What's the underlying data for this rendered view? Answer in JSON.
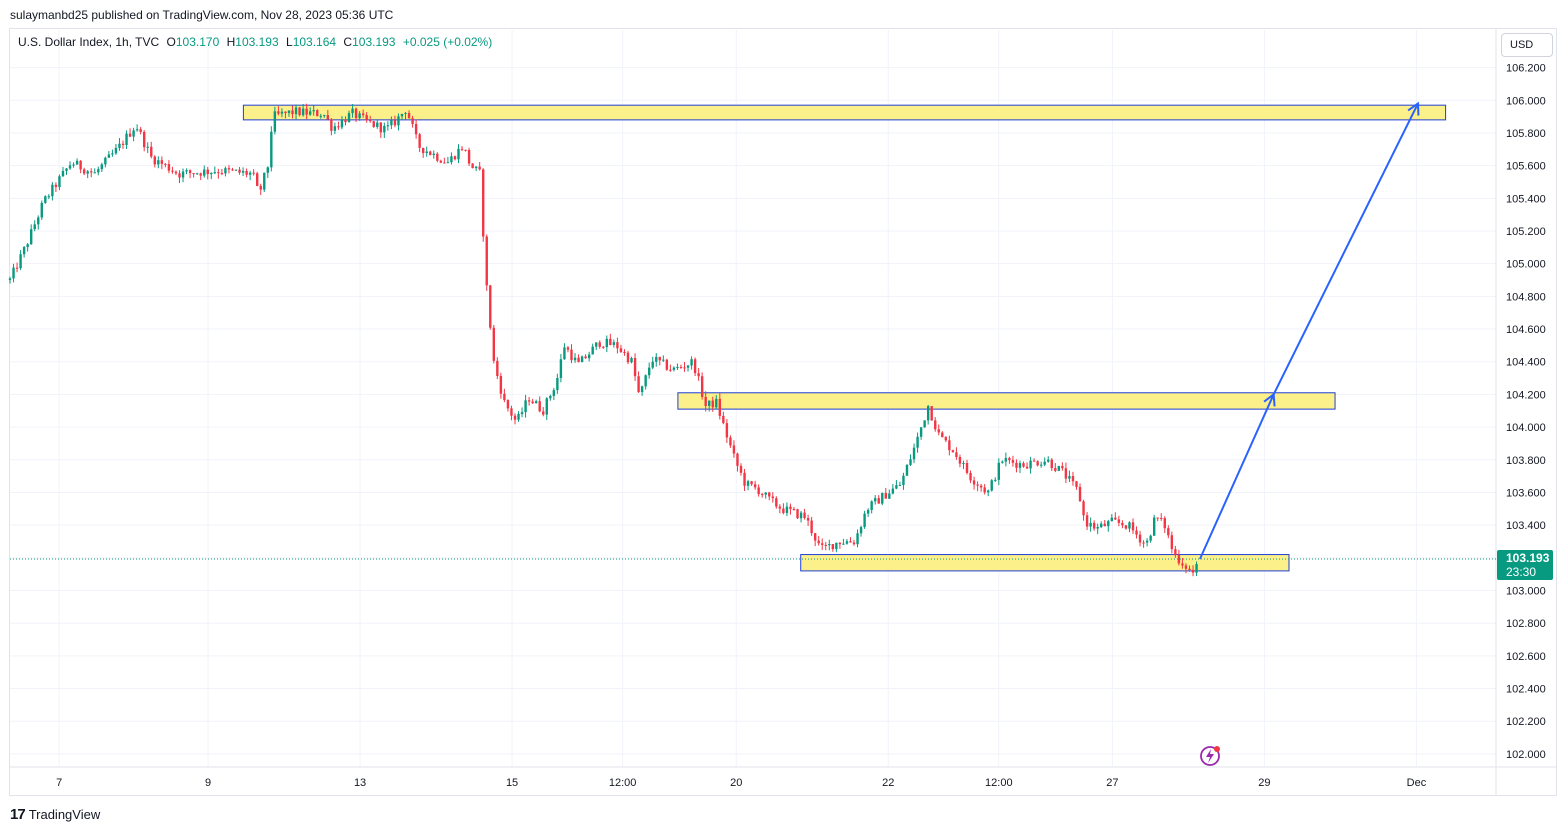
{
  "header": {
    "published_text": "sulaymanbd25 published on TradingView.com, Nov 28, 2023 05:36 UTC"
  },
  "legend": {
    "symbol": "U.S. Dollar Index, 1h, TVC",
    "open_label": "O",
    "open": "103.170",
    "high_label": "H",
    "high": "103.193",
    "low_label": "L",
    "low": "103.164",
    "close_label": "C",
    "close": "103.193",
    "change": "+0.025 (+0.02%)"
  },
  "currency": "USD",
  "price_tag": {
    "price": "103.193",
    "countdown": "23:30"
  },
  "footer": {
    "brand": "TradingView",
    "logo_text": "17"
  },
  "icons": [
    "tradingview-logo-icon",
    "flash-icon"
  ],
  "colors": {
    "up": "#089981",
    "down": "#f23645",
    "zone_fill": "#fbf08a",
    "zone_border": "#1e3fd6",
    "arrow": "#2962ff",
    "price_line": "#089981"
  },
  "chart_data": {
    "type": "candlestick",
    "ylim": [
      101.92,
      106.43
    ],
    "yticks": [
      102.0,
      102.2,
      102.4,
      102.6,
      102.8,
      103.0,
      103.2,
      103.4,
      103.6,
      103.8,
      104.0,
      104.2,
      104.4,
      104.6,
      104.8,
      105.0,
      105.2,
      105.4,
      105.6,
      105.8,
      106.0,
      106.2
    ],
    "ytick_labels": [
      "102.000",
      "102.200",
      "102.400",
      "102.600",
      "102.800",
      "103.000",
      "103.200",
      "103.400",
      "103.600",
      "103.800",
      "104.000",
      "104.200",
      "104.400",
      "104.600",
      "104.800",
      "105.000",
      "105.200",
      "105.400",
      "105.600",
      "105.800",
      "106.000",
      "106.200"
    ],
    "xticks": [
      {
        "label": "7",
        "t": 32
      },
      {
        "label": "9",
        "t": 129
      },
      {
        "label": "13",
        "t": 228
      },
      {
        "label": "15",
        "t": 327
      },
      {
        "label": "12:00",
        "t": 399
      },
      {
        "label": "20",
        "t": 473
      },
      {
        "label": "22",
        "t": 572
      },
      {
        "label": "12:00",
        "t": 644
      },
      {
        "label": "27",
        "t": 718
      },
      {
        "label": "29",
        "t": 817
      },
      {
        "label": "Dec",
        "t": 916
      }
    ],
    "price_path": [
      [
        0,
        104.9
      ],
      [
        10,
        105.1
      ],
      [
        22,
        105.38
      ],
      [
        40,
        105.62
      ],
      [
        55,
        105.55
      ],
      [
        70,
        105.7
      ],
      [
        82,
        105.85
      ],
      [
        92,
        105.65
      ],
      [
        110,
        105.55
      ],
      [
        135,
        105.57
      ],
      [
        158,
        105.55
      ],
      [
        162,
        105.42
      ],
      [
        168,
        105.6
      ],
      [
        171,
        105.9
      ],
      [
        185,
        105.93
      ],
      [
        196,
        105.92
      ],
      [
        204,
        105.92
      ],
      [
        210,
        105.83
      ],
      [
        223,
        105.92
      ],
      [
        232,
        105.87
      ],
      [
        245,
        105.82
      ],
      [
        252,
        105.88
      ],
      [
        258,
        105.95
      ],
      [
        266,
        105.72
      ],
      [
        285,
        105.62
      ],
      [
        295,
        105.72
      ],
      [
        300,
        105.6
      ],
      [
        306,
        105.55
      ],
      [
        310,
        104.9
      ],
      [
        315,
        104.4
      ],
      [
        322,
        104.15
      ],
      [
        330,
        104.03
      ],
      [
        338,
        104.18
      ],
      [
        347,
        104.1
      ],
      [
        356,
        104.28
      ],
      [
        361,
        104.5
      ],
      [
        370,
        104.38
      ],
      [
        384,
        104.52
      ],
      [
        395,
        104.5
      ],
      [
        405,
        104.4
      ],
      [
        410,
        104.18
      ],
      [
        418,
        104.42
      ],
      [
        432,
        104.35
      ],
      [
        445,
        104.4
      ],
      [
        453,
        104.13
      ],
      [
        460,
        104.15
      ],
      [
        465,
        104.0
      ],
      [
        472,
        103.8
      ],
      [
        479,
        103.65
      ],
      [
        487,
        103.62
      ],
      [
        495,
        103.55
      ],
      [
        503,
        103.5
      ],
      [
        518,
        103.45
      ],
      [
        528,
        103.25
      ],
      [
        540,
        103.3
      ],
      [
        550,
        103.3
      ],
      [
        558,
        103.5
      ],
      [
        572,
        103.6
      ],
      [
        580,
        103.65
      ],
      [
        590,
        103.9
      ],
      [
        598,
        104.13
      ],
      [
        605,
        103.95
      ],
      [
        615,
        103.85
      ],
      [
        625,
        103.7
      ],
      [
        637,
        103.6
      ],
      [
        646,
        103.8
      ],
      [
        660,
        103.77
      ],
      [
        675,
        103.8
      ],
      [
        686,
        103.72
      ],
      [
        696,
        103.6
      ],
      [
        700,
        103.42
      ],
      [
        708,
        103.38
      ],
      [
        718,
        103.42
      ],
      [
        728,
        103.4
      ],
      [
        740,
        103.28
      ],
      [
        746,
        103.45
      ],
      [
        752,
        103.4
      ],
      [
        758,
        103.22
      ],
      [
        766,
        103.15
      ],
      [
        770,
        103.1
      ],
      [
        775,
        103.18
      ]
    ],
    "zones": [
      {
        "t0": 152,
        "t1": 935,
        "y0": 105.88,
        "y1": 105.97
      },
      {
        "t0": 435,
        "t1": 863,
        "y0": 104.11,
        "y1": 104.21
      },
      {
        "t0": 515,
        "t1": 833,
        "y0": 103.12,
        "y1": 103.22
      }
    ],
    "projection": [
      [
        775,
        103.193
      ],
      [
        823,
        104.2
      ],
      [
        917,
        105.98
      ]
    ],
    "last_price": 103.193
  }
}
